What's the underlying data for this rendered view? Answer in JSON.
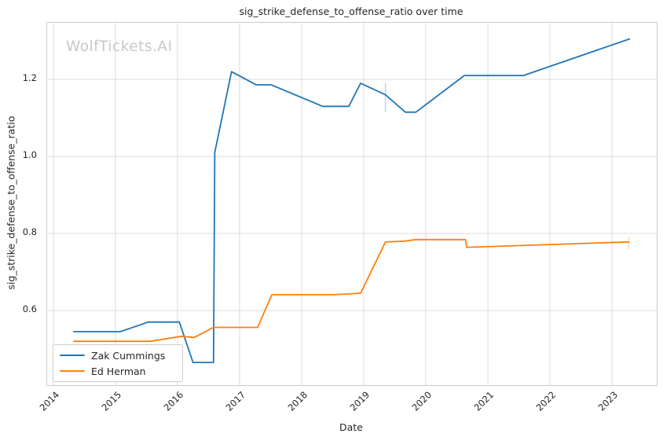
{
  "watermark": "WolfTickets.AI",
  "chart_data": {
    "type": "line",
    "title": "sig_strike_defense_to_offense_ratio over time",
    "xlabel": "Date",
    "ylabel": "sig_strike_defense_to_offense_ratio",
    "xlim": [
      2013.9,
      2023.72
    ],
    "ylim": [
      0.406,
      1.347
    ],
    "grid": true,
    "legend_position": "lower left",
    "x_ticks": [
      {
        "value": 2014,
        "label": "2014"
      },
      {
        "value": 2015,
        "label": "2015"
      },
      {
        "value": 2016,
        "label": "2016"
      },
      {
        "value": 2017,
        "label": "2017"
      },
      {
        "value": 2018,
        "label": "2018"
      },
      {
        "value": 2019,
        "label": "2019"
      },
      {
        "value": 2020,
        "label": "2020"
      },
      {
        "value": 2021,
        "label": "2021"
      },
      {
        "value": 2022,
        "label": "2022"
      },
      {
        "value": 2023,
        "label": "2023"
      }
    ],
    "y_ticks": [
      {
        "value": 0.6,
        "label": "0.6"
      },
      {
        "value": 0.8,
        "label": "0.8"
      },
      {
        "value": 1.0,
        "label": "1.0"
      },
      {
        "value": 1.2,
        "label": "1.2"
      }
    ],
    "series": [
      {
        "name": "Zak Cummings",
        "color": "#1f77b4",
        "x": [
          2014.33,
          2015.08,
          2015.53,
          2016.03,
          2016.25,
          2016.58,
          2016.6,
          2016.87,
          2017.27,
          2017.51,
          2018.34,
          2018.76,
          2018.95,
          2019.35,
          2019.67,
          2019.84,
          2020.62,
          2021.57,
          2023.28
        ],
        "y": [
          0.545,
          0.545,
          0.57,
          0.57,
          0.465,
          0.465,
          1.01,
          1.22,
          1.186,
          1.186,
          1.13,
          1.13,
          1.19,
          1.16,
          1.115,
          1.115,
          1.21,
          1.21,
          1.305
        ]
      },
      {
        "name": "Ed Herman",
        "color": "#ff7f0e",
        "x": [
          2014.33,
          2015.56,
          2016.06,
          2016.27,
          2016.58,
          2017.29,
          2017.52,
          2018.51,
          2018.78,
          2018.95,
          2019.35,
          2019.65,
          2019.84,
          2020.64,
          2020.66,
          2023.27
        ],
        "y": [
          0.52,
          0.52,
          0.533,
          0.53,
          0.556,
          0.556,
          0.641,
          0.641,
          0.643,
          0.645,
          0.778,
          0.78,
          0.784,
          0.784,
          0.764,
          0.778
        ]
      }
    ],
    "error_bars": [
      {
        "series": "Zak Cummings",
        "color": "#1f77b4",
        "x": 2019.35,
        "y_low": 1.115,
        "y_high": 1.19
      },
      {
        "series": "Ed Herman",
        "color": "#ff7f0e",
        "x": 2023.27,
        "y_low": 0.759,
        "y_high": 0.792
      }
    ],
    "grid_color": "#dcdcdc",
    "spine_color": "#cccccc"
  }
}
